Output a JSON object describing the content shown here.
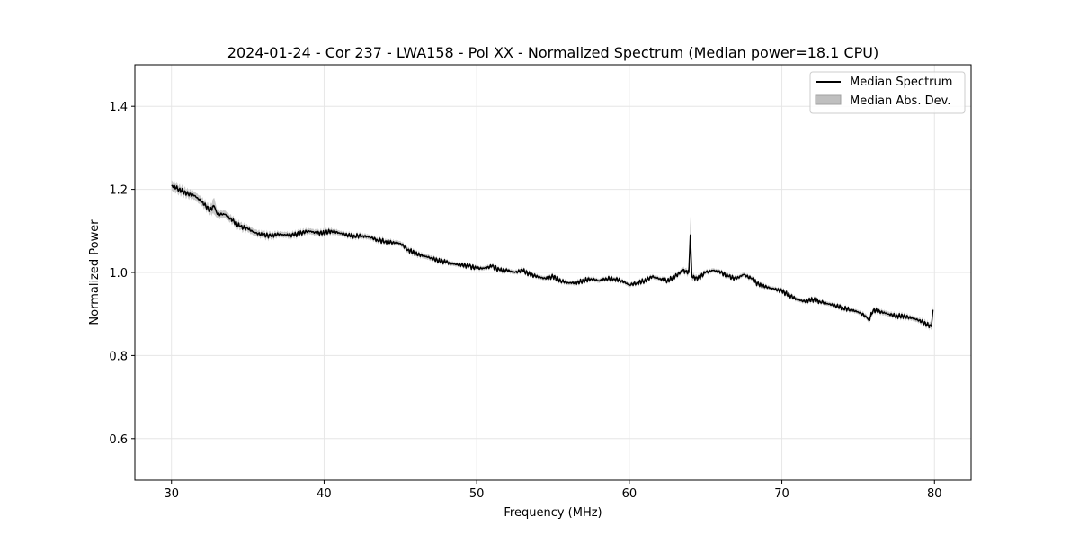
{
  "chart_data": {
    "type": "line",
    "title": "2024-01-24 - Cor 237 - LWA158 - Pol XX - Normalized Spectrum (Median power=18.1 CPU)",
    "xlabel": "Frequency (MHz)",
    "ylabel": "Normalized Power",
    "xlim": [
      27.6,
      82.4
    ],
    "ylim": [
      0.5,
      1.5
    ],
    "xticks": [
      30,
      40,
      50,
      60,
      70,
      80
    ],
    "yticks": [
      0.6,
      0.8,
      1.0,
      1.2,
      1.4
    ],
    "xtick_labels": [
      "30",
      "40",
      "50",
      "60",
      "70",
      "80"
    ],
    "ytick_labels": [
      "0.6",
      "0.8",
      "1.0",
      "1.2",
      "1.4"
    ],
    "grid": true,
    "legend_position": "top-right",
    "colors": {
      "line": "#000000",
      "band": "#bfbfbf",
      "grid": "#e6e6e6"
    },
    "series": [
      {
        "name": "Median Spectrum",
        "kind": "line",
        "x": [
          30.0,
          30.5,
          31.0,
          31.5,
          32.0,
          32.5,
          32.8,
          33.0,
          33.5,
          34.0,
          34.5,
          35.0,
          35.5,
          36.0,
          36.5,
          37.0,
          37.5,
          38.0,
          38.5,
          39.0,
          39.5,
          40.0,
          40.5,
          41.0,
          41.5,
          42.0,
          42.5,
          43.0,
          43.5,
          44.0,
          44.5,
          45.0,
          45.5,
          46.0,
          46.5,
          47.0,
          47.5,
          48.0,
          48.5,
          49.0,
          49.5,
          50.0,
          50.5,
          51.0,
          51.5,
          52.0,
          52.5,
          53.0,
          53.5,
          54.0,
          54.5,
          55.0,
          55.5,
          56.0,
          56.5,
          57.0,
          57.5,
          58.0,
          58.5,
          59.0,
          59.5,
          60.0,
          60.5,
          61.0,
          61.5,
          62.0,
          62.5,
          63.0,
          63.5,
          63.9,
          64.0,
          64.1,
          64.5,
          65.0,
          65.5,
          66.0,
          66.5,
          67.0,
          67.5,
          68.0,
          68.5,
          69.0,
          69.5,
          70.0,
          70.5,
          71.0,
          71.5,
          72.0,
          72.5,
          73.0,
          73.5,
          74.0,
          74.5,
          75.0,
          75.5,
          75.7,
          76.0,
          76.5,
          77.0,
          77.5,
          78.0,
          78.5,
          79.0,
          79.5,
          79.8,
          79.9
        ],
        "y": [
          1.21,
          1.2,
          1.19,
          1.185,
          1.17,
          1.15,
          1.16,
          1.14,
          1.14,
          1.125,
          1.11,
          1.105,
          1.095,
          1.09,
          1.088,
          1.092,
          1.09,
          1.09,
          1.095,
          1.1,
          1.095,
          1.095,
          1.1,
          1.095,
          1.09,
          1.088,
          1.088,
          1.085,
          1.078,
          1.075,
          1.072,
          1.07,
          1.055,
          1.045,
          1.04,
          1.035,
          1.028,
          1.025,
          1.02,
          1.018,
          1.015,
          1.01,
          1.01,
          1.015,
          1.005,
          1.005,
          1.0,
          1.005,
          0.995,
          0.99,
          0.985,
          0.99,
          0.98,
          0.975,
          0.975,
          0.98,
          0.985,
          0.98,
          0.985,
          0.985,
          0.98,
          0.97,
          0.975,
          0.98,
          0.99,
          0.985,
          0.98,
          0.99,
          1.005,
          1.0,
          1.09,
          0.99,
          0.985,
          1.0,
          1.005,
          1.0,
          0.99,
          0.985,
          0.995,
          0.985,
          0.97,
          0.965,
          0.96,
          0.955,
          0.945,
          0.935,
          0.93,
          0.935,
          0.93,
          0.925,
          0.92,
          0.915,
          0.91,
          0.905,
          0.895,
          0.885,
          0.91,
          0.905,
          0.9,
          0.895,
          0.895,
          0.89,
          0.885,
          0.875,
          0.87,
          0.91
        ]
      },
      {
        "name": "Median Abs. Dev.",
        "kind": "band",
        "halfwidth": [
          0.012,
          0.011,
          0.01,
          0.01,
          0.01,
          0.01,
          0.02,
          0.01,
          0.009,
          0.009,
          0.009,
          0.008,
          0.008,
          0.008,
          0.008,
          0.007,
          0.007,
          0.007,
          0.007,
          0.007,
          0.007,
          0.007,
          0.007,
          0.006,
          0.006,
          0.006,
          0.006,
          0.006,
          0.006,
          0.006,
          0.006,
          0.006,
          0.006,
          0.006,
          0.006,
          0.006,
          0.005,
          0.005,
          0.005,
          0.005,
          0.005,
          0.005,
          0.005,
          0.005,
          0.005,
          0.005,
          0.005,
          0.005,
          0.005,
          0.005,
          0.005,
          0.005,
          0.005,
          0.005,
          0.005,
          0.005,
          0.005,
          0.005,
          0.005,
          0.005,
          0.005,
          0.005,
          0.005,
          0.005,
          0.005,
          0.005,
          0.005,
          0.005,
          0.006,
          0.008,
          0.045,
          0.008,
          0.006,
          0.005,
          0.005,
          0.005,
          0.005,
          0.005,
          0.005,
          0.005,
          0.005,
          0.005,
          0.005,
          0.005,
          0.005,
          0.005,
          0.005,
          0.005,
          0.005,
          0.005,
          0.005,
          0.005,
          0.005,
          0.005,
          0.006,
          0.006,
          0.006,
          0.006,
          0.006,
          0.006,
          0.006,
          0.006,
          0.006,
          0.007,
          0.008,
          0.01
        ]
      }
    ]
  }
}
